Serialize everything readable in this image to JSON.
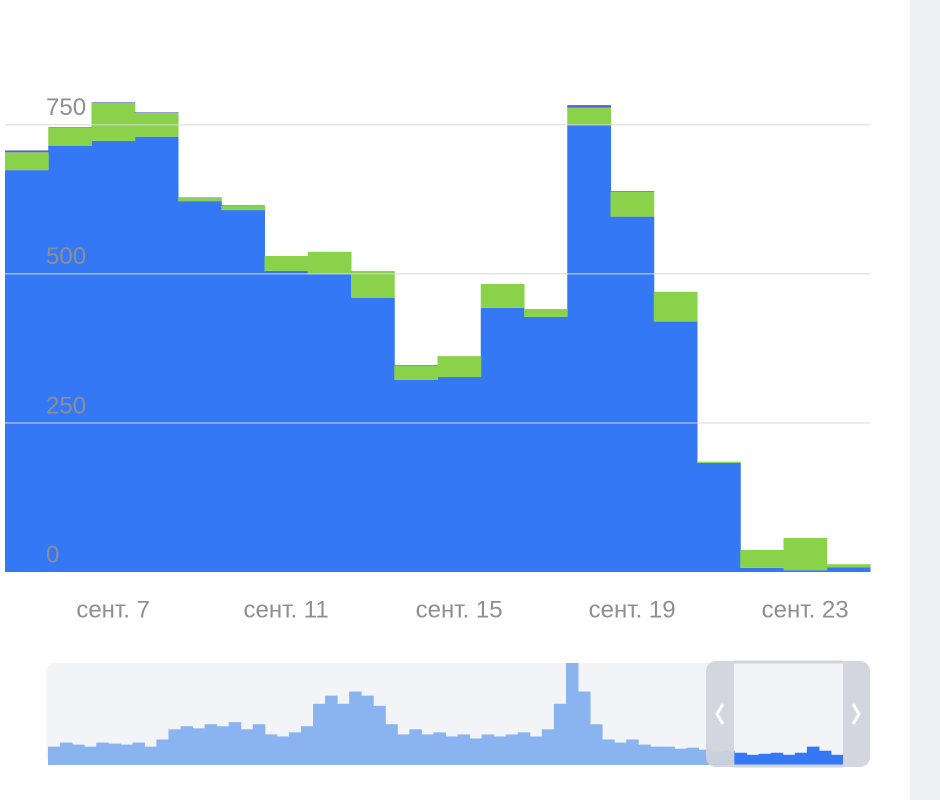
{
  "chart_data": [
    {
      "type": "stacked-bar",
      "categories": [
        null,
        null,
        "сент. 7",
        null,
        null,
        null,
        "сент. 11",
        null,
        null,
        null,
        "сент. 15",
        null,
        null,
        null,
        "сент. 19",
        null,
        null,
        null,
        "сент. 23",
        null
      ],
      "series": [
        {
          "color": "#3478f6",
          "values": [
            674,
            715,
            723,
            730,
            622,
            607,
            505,
            500,
            460,
            322,
            327,
            443,
            428,
            750,
            596,
            420,
            183,
            7,
            3,
            8
          ]
        },
        {
          "color": "#8ad24a",
          "values": [
            30,
            30,
            64,
            40,
            5,
            7,
            25,
            37,
            45,
            24,
            35,
            40,
            13,
            29,
            42,
            50,
            2,
            30,
            54,
            5
          ]
        },
        {
          "color": "#5b5bd6",
          "values": [
            3,
            1,
            1,
            1,
            1,
            1,
            0,
            0,
            0,
            1,
            0,
            0,
            0,
            4,
            1,
            0,
            0,
            0,
            0,
            0
          ]
        }
      ],
      "ylim": [
        0,
        800
      ],
      "yticks": [
        0,
        250,
        500,
        750
      ],
      "grid": true
    },
    {
      "type": "navigator",
      "color": "#8ab4f0",
      "selected_color": "#3478f6",
      "values": [
        18,
        22,
        20,
        18,
        22,
        21,
        20,
        22,
        18,
        25,
        35,
        38,
        36,
        40,
        38,
        42,
        35,
        40,
        30,
        28,
        32,
        38,
        60,
        68,
        60,
        72,
        68,
        58,
        40,
        30,
        35,
        30,
        32,
        28,
        30,
        26,
        30,
        28,
        30,
        32,
        28,
        35,
        60,
        100,
        72,
        40,
        25,
        22,
        25,
        20,
        18,
        18,
        16,
        17,
        15,
        13,
        14,
        12,
        10,
        11,
        12,
        10,
        12,
        18,
        14,
        10
      ],
      "ylim": [
        0,
        100
      ]
    }
  ]
}
